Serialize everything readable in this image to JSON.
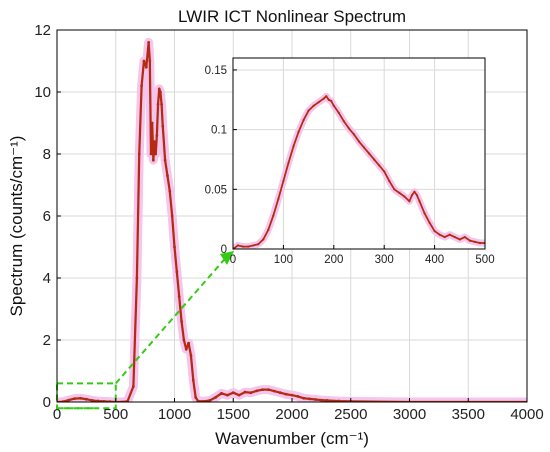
{
  "chart_data": [
    {
      "type": "line",
      "title": "LWIR ICT Nonlinear Spectrum",
      "xlabel": "Wavenumber (cm⁻¹)",
      "ylabel": "Spectrum (counts/cm⁻¹)",
      "xlim": [
        0,
        4000
      ],
      "ylim": [
        0,
        12
      ],
      "xticks": [
        "0",
        "500",
        "1000",
        "1500",
        "2000",
        "2500",
        "3000",
        "3500",
        "4000"
      ],
      "yticks": [
        "0",
        "2",
        "4",
        "6",
        "8",
        "10",
        "12"
      ],
      "grid": true,
      "series": [
        {
          "color": "#b52a10",
          "band_color": "#f4c6ee",
          "x": [
            0,
            50,
            100,
            150,
            200,
            250,
            300,
            350,
            400,
            450,
            500,
            550,
            600,
            650,
            680,
            700,
            720,
            740,
            760,
            780,
            790,
            800,
            810,
            820,
            830,
            840,
            850,
            860,
            870,
            880,
            890,
            900,
            920,
            940,
            960,
            980,
            1000,
            1020,
            1040,
            1060,
            1080,
            1100,
            1120,
            1140,
            1160,
            1180,
            1200,
            1250,
            1300,
            1350,
            1400,
            1450,
            1500,
            1550,
            1600,
            1650,
            1700,
            1750,
            1800,
            1850,
            1900,
            1950,
            2000,
            2050,
            2100,
            2150,
            2200,
            2250,
            2300,
            2400,
            2500,
            3000,
            3500,
            4000
          ],
          "y": [
            0.0,
            0.01,
            0.06,
            0.11,
            0.12,
            0.09,
            0.05,
            0.03,
            0.02,
            0.01,
            0.0,
            0.0,
            0.02,
            0.5,
            4.0,
            8.0,
            10.2,
            11.0,
            10.8,
            11.6,
            11.0,
            8.0,
            9.0,
            7.8,
            8.4,
            8.0,
            8.6,
            9.6,
            10.1,
            10.0,
            9.6,
            8.9,
            7.8,
            7.3,
            6.8,
            6.0,
            5.0,
            4.2,
            3.4,
            2.6,
            2.0,
            1.7,
            1.9,
            1.5,
            0.7,
            0.15,
            0.03,
            0.02,
            0.05,
            0.15,
            0.28,
            0.22,
            0.3,
            0.22,
            0.32,
            0.3,
            0.36,
            0.4,
            0.4,
            0.35,
            0.3,
            0.25,
            0.22,
            0.18,
            0.12,
            0.1,
            0.08,
            0.06,
            0.05,
            0.03,
            0.02,
            0.0,
            0.0,
            0.0
          ]
        }
      ]
    },
    {
      "type": "line",
      "title": "",
      "xlim": [
        0,
        500
      ],
      "ylim": [
        0,
        0.16
      ],
      "xticks": [
        "0",
        "100",
        "200",
        "300",
        "400",
        "500"
      ],
      "yticks": [
        "0",
        "0.05",
        "0.1",
        "0.15"
      ],
      "grid": true,
      "series": [
        {
          "color": "#b52a10",
          "band_color": "#f4c6ee",
          "x": [
            0,
            10,
            20,
            30,
            40,
            50,
            60,
            70,
            80,
            90,
            100,
            110,
            120,
            130,
            140,
            150,
            160,
            170,
            180,
            185,
            190,
            195,
            200,
            210,
            220,
            230,
            240,
            250,
            260,
            270,
            280,
            290,
            300,
            310,
            320,
            330,
            340,
            350,
            355,
            360,
            365,
            370,
            380,
            390,
            400,
            410,
            420,
            430,
            440,
            450,
            460,
            470,
            480,
            490,
            500
          ],
          "y": [
            0.0,
            0.003,
            0.002,
            0.002,
            0.003,
            0.004,
            0.008,
            0.016,
            0.028,
            0.042,
            0.057,
            0.072,
            0.086,
            0.098,
            0.108,
            0.116,
            0.12,
            0.123,
            0.126,
            0.128,
            0.125,
            0.124,
            0.12,
            0.114,
            0.107,
            0.101,
            0.096,
            0.09,
            0.085,
            0.08,
            0.075,
            0.07,
            0.065,
            0.057,
            0.05,
            0.047,
            0.044,
            0.04,
            0.045,
            0.048,
            0.045,
            0.04,
            0.03,
            0.022,
            0.015,
            0.012,
            0.01,
            0.012,
            0.01,
            0.008,
            0.01,
            0.007,
            0.006,
            0.005,
            0.005
          ]
        }
      ]
    }
  ],
  "annotations": {
    "zoom_box": {
      "x": [
        0,
        500
      ],
      "y": [
        -0.2,
        0.6
      ]
    },
    "colors": {
      "zoom": "#33cc11",
      "grid": "#d9d9d9",
      "axis": "#000000"
    }
  }
}
